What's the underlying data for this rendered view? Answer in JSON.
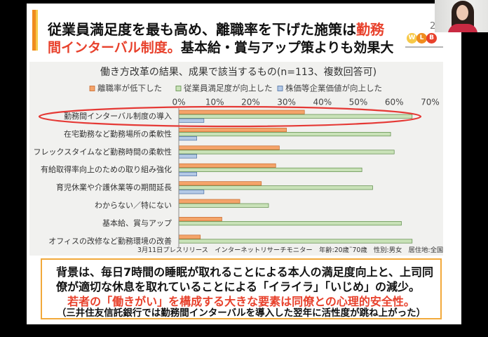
{
  "slide": {
    "page_number": "2",
    "title": {
      "line1_black": "従業員満足度を最も高め、離職率を下げた施策は",
      "line1_red": "勤務",
      "line2_red": "間インターバル制度。",
      "line2_black": "基本給・賞与アップ策よりも効果大"
    },
    "logo": {
      "letters": [
        "W",
        "L",
        "B"
      ]
    },
    "source_note": "3月11日プレスリリース　インターネットリサーチモニター　年齢:20歳˜70歳　性別:男女　居住地:全国",
    "summary": {
      "line1": "背景は、毎日7時間の睡眠が取れることによる本人の満足度向上と、上司同",
      "line2": "僚が適切な休息を取れていることによる「イライラ」「いじめ」の減少。",
      "line3": "若者の「働きがい」を構成する大きな要素は同僚との心理的安全性。",
      "line4": "（三井住友信託銀行では勤務間インターバルを導入した翌年に活性度が跳ね上がった）"
    }
  },
  "colors": {
    "accent_red": "#e8412c",
    "accent_orange": "#f08c1e",
    "accent_yellow": "#f7c948",
    "summary_border": "#f2a93b",
    "chart_panel": "#f1f1ef"
  },
  "chart_data": {
    "type": "bar",
    "orientation": "horizontal",
    "title": "働き方改革の結果、成果で該当するもの(n=113、複数回答可)",
    "categories": [
      "勤務間インターバル制度の導入",
      "在宅勤務など勤務場所の柔軟性",
      "フレックスタイムなど勤務時間の柔軟性",
      "有給取得率向上のための取り組み強化",
      "育児休業や介護休業等の期間延長",
      "わからない／特にない",
      "基本給、賞与アップ",
      "オフィスの改修など勤務環境の改善"
    ],
    "series": [
      {
        "name": "離職率が低下した",
        "color": "#f4a46a",
        "stroke": "#c7692e",
        "values": [
          35,
          30,
          28,
          27,
          23,
          17,
          12,
          6
        ]
      },
      {
        "name": "従業員満足度が向上した",
        "color": "#c9e2b8",
        "stroke": "#5b8a45",
        "values": [
          65,
          59,
          60,
          51,
          54,
          25,
          62,
          65
        ]
      },
      {
        "name": "株価等企業価値が向上した",
        "color": "#b3c9e6",
        "stroke": "#4a6ea3",
        "values": [
          7,
          5,
          5,
          5,
          7,
          0,
          0,
          0
        ]
      }
    ],
    "x_ticks": [
      0,
      10,
      20,
      30,
      40,
      50,
      60,
      70
    ],
    "x_tick_labels": [
      "0%",
      "10%",
      "20%",
      "30%",
      "40%",
      "50%",
      "60%",
      "70%"
    ],
    "xlim": [
      0,
      70
    ],
    "xlabel": "",
    "ylabel": "",
    "grid": false,
    "legend": "top",
    "highlight_index": 0,
    "highlight_color": "#e53935"
  }
}
